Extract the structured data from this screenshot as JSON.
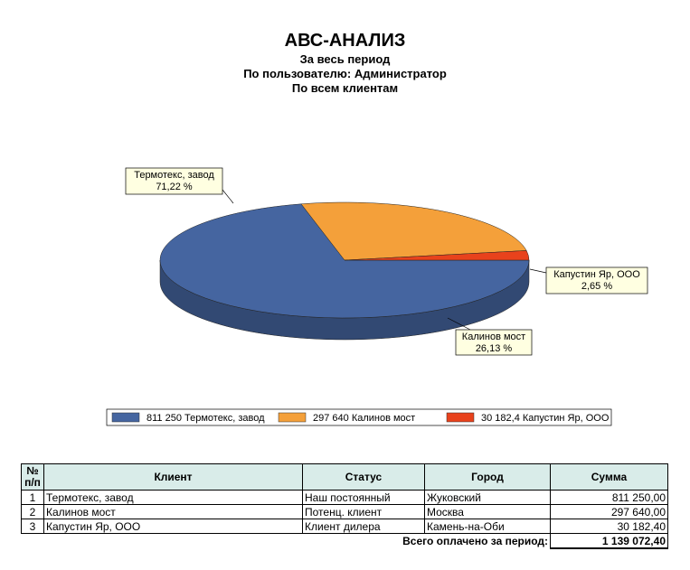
{
  "header": {
    "title": "АВС-АНАЛИЗ",
    "subtitles": [
      "За весь период",
      "По пользователю: Администратор",
      "По всем клиентам"
    ]
  },
  "chart_data": {
    "type": "pie",
    "categories": [
      "Термотекс, завод",
      "Калинов мост",
      "Капустин Яр, ООО"
    ],
    "values": [
      71.22,
      26.13,
      2.65
    ],
    "value_labels": [
      "71,22 %",
      "26,13 %",
      "2,65 %"
    ],
    "colors": [
      "#4565a0",
      "#f4a03a",
      "#e8421c"
    ],
    "legend": [
      "811 250 Термотекс, завод",
      "297 640 Калинов мост",
      "30 182,4 Капустин Яр, ООО"
    ]
  },
  "table": {
    "header": [
      "№ п/п",
      "Клиент",
      "Статус",
      "Город",
      "Сумма"
    ],
    "rows": [
      [
        "1",
        "Термотекс, завод",
        "Наш постоянный",
        "Жуковский",
        "811 250,00"
      ],
      [
        "2",
        "Калинов мост",
        "Потенц. клиент",
        "Москва",
        "297 640,00"
      ],
      [
        "3",
        "Капустин Яр, ООО",
        "Клиент дилера",
        "Камень-на-Оби",
        "30 182,40"
      ]
    ],
    "footer_label": "Всего оплачено за период:",
    "footer_total": "1 139 072,40"
  }
}
